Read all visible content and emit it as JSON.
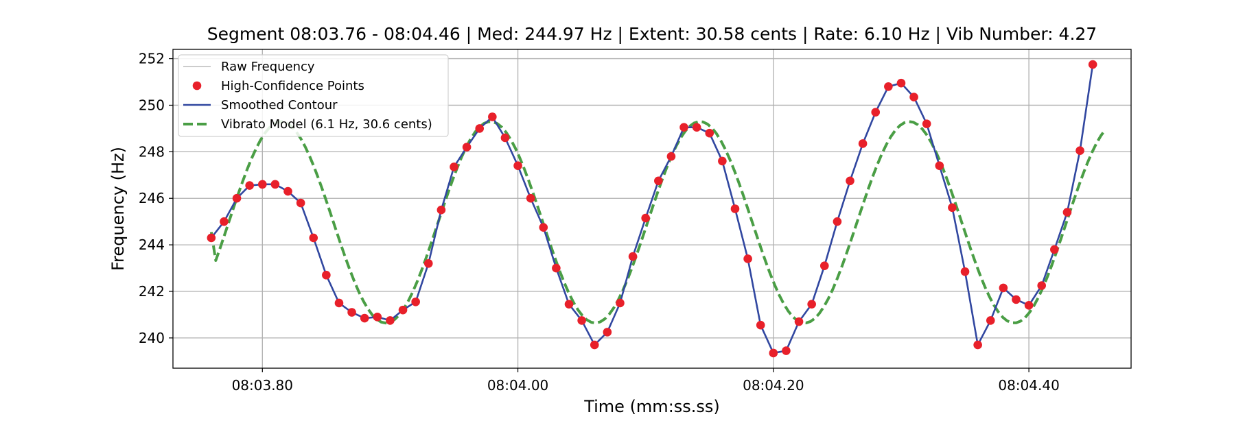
{
  "chart_data": {
    "type": "line",
    "title": "Segment 08:03.76 - 08:04.46 | Med: 244.97 Hz | Extent: 30.58 cents | Rate: 6.10 Hz | Vib Number: 4.27",
    "xlabel": "Time (mm:ss.ss)",
    "ylabel": "Frequency (Hz)",
    "xlim": [
      "08:03.73",
      "08:04.48"
    ],
    "ylim": [
      238.7,
      252.4
    ],
    "x_ticks": [
      "08:03.80",
      "08:04.00",
      "08:04.20",
      "08:04.40"
    ],
    "y_ticks": [
      240,
      242,
      244,
      246,
      248,
      250,
      252
    ],
    "grid": true,
    "legend_position": "top-left",
    "time_axis": {
      "start_time": "08:03.76",
      "end_time": "08:04.46",
      "step_seconds": 0.01
    },
    "series": [
      {
        "name": "Raw Frequency",
        "kind": "line",
        "color": "#cccccc",
        "values": []
      },
      {
        "name": "High-Confidence Points",
        "kind": "scatter",
        "color": "#e8202a",
        "values": [
          244.3,
          245.0,
          246.0,
          246.55,
          246.6,
          246.6,
          246.3,
          245.8,
          244.3,
          242.7,
          241.5,
          241.1,
          240.85,
          240.9,
          240.75,
          241.2,
          241.55,
          243.2,
          245.5,
          247.35,
          248.2,
          249.0,
          249.5,
          248.6,
          247.4,
          246.0,
          244.75,
          243.0,
          241.45,
          240.75,
          239.7,
          240.25,
          241.5,
          243.5,
          245.15,
          246.75,
          247.8,
          249.05,
          249.05,
          248.8,
          247.6,
          245.55,
          243.4,
          240.55,
          239.35,
          239.45,
          240.7,
          241.45,
          243.1,
          245.0,
          246.75,
          248.35,
          249.7,
          250.8,
          250.95,
          250.35,
          249.2,
          247.4,
          245.6,
          242.85,
          239.7,
          240.75,
          242.15,
          241.65,
          241.4,
          242.25,
          243.8,
          245.4,
          248.05,
          251.75
        ]
      },
      {
        "name": "Smoothed Contour",
        "kind": "line",
        "color": "#3147a0",
        "values": [
          244.3,
          245.0,
          246.0,
          246.55,
          246.6,
          246.6,
          246.3,
          245.8,
          244.3,
          242.7,
          241.5,
          241.1,
          240.85,
          240.9,
          240.75,
          241.2,
          241.55,
          243.2,
          245.5,
          247.35,
          248.2,
          249.0,
          249.5,
          248.6,
          247.4,
          246.0,
          244.75,
          243.0,
          241.45,
          240.75,
          239.7,
          240.25,
          241.5,
          243.5,
          245.15,
          246.75,
          247.8,
          249.05,
          249.05,
          248.8,
          247.6,
          245.55,
          243.4,
          240.55,
          239.35,
          239.45,
          240.7,
          241.45,
          243.1,
          245.0,
          246.75,
          248.35,
          249.7,
          250.8,
          250.95,
          250.35,
          249.2,
          247.4,
          245.6,
          242.85,
          239.7,
          240.75,
          242.15,
          241.65,
          241.4,
          242.25,
          243.8,
          245.4,
          248.05,
          251.75
        ]
      },
      {
        "name": "Vibrato Model (6.1 Hz, 30.6 cents)",
        "kind": "dashed-line",
        "color": "#4a9e45",
        "model": {
          "center": 244.97,
          "amplitude_hz": 4.33,
          "rate_hz": 6.1,
          "phase_deg": -30,
          "samples": 200
        },
        "start_value": 244.55
      }
    ]
  }
}
